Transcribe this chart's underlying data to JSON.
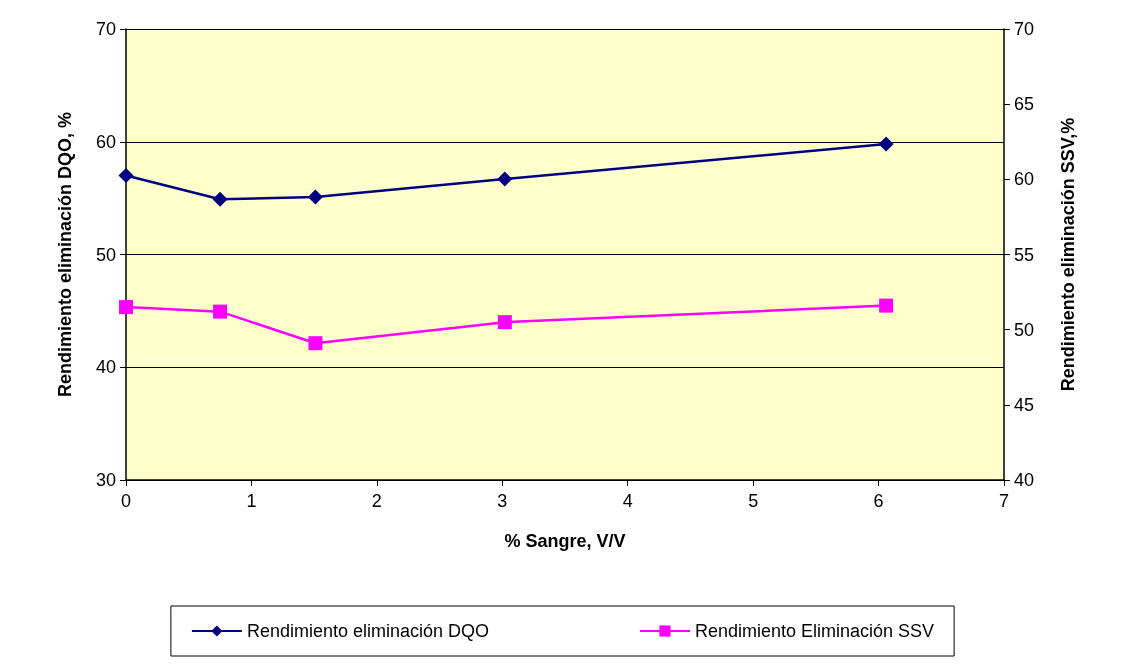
{
  "chart_data": {
    "type": "line",
    "xlabel": "% Sangre, V/V",
    "ylabel": "Rendimiento eliminación DQO, %",
    "y2label": "Rendimiento eliminación SSV,%",
    "x": [
      0,
      0.75,
      1.51,
      3.02,
      6.06
    ],
    "series": [
      {
        "name": "Rendimiento eliminación DQO",
        "color": "#000080",
        "marker": "diamond",
        "values": [
          57.0,
          54.9,
          55.1,
          56.7,
          59.8
        ]
      },
      {
        "name": "Rendimiento Eliminación SSV",
        "color": "#ff00ff",
        "marker": "square",
        "axis": "y2",
        "values": [
          51.5,
          51.2,
          49.1,
          50.5,
          51.6
        ]
      }
    ],
    "xlim": [
      0,
      7
    ],
    "xticks": [
      0,
      1,
      2,
      3,
      4,
      5,
      6,
      7
    ],
    "ylim": [
      30,
      70
    ],
    "yticks": [
      30,
      40,
      50,
      60,
      70
    ],
    "y2lim": [
      40,
      70
    ],
    "y2ticks": [
      40,
      45,
      50,
      55,
      60,
      65,
      70
    ],
    "grid": "y",
    "legend": "bottom",
    "line_style": "solid"
  }
}
